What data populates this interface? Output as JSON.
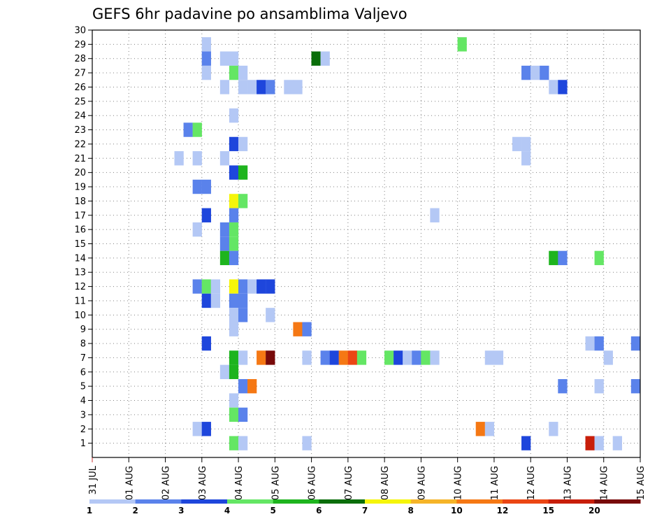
{
  "chart_data": {
    "type": "heatmap",
    "title": "GEFS 6hr padavine po ansamblima Valjevo",
    "y_ticks": [
      "1",
      "2",
      "3",
      "4",
      "5",
      "6",
      "7",
      "8",
      "9",
      "10",
      "11",
      "12",
      "13",
      "14",
      "15",
      "16",
      "17",
      "18",
      "19",
      "20",
      "21",
      "22",
      "23",
      "24",
      "25",
      "26",
      "27",
      "28",
      "29",
      "30"
    ],
    "x_ticks": [
      "31 JUL",
      "01 AUG",
      "02 AUG",
      "03 AUG",
      "04 AUG",
      "05 AUG",
      "06 AUG",
      "07 AUG",
      "08 AUG",
      "09 AUG",
      "10 AUG",
      "11 AUG",
      "12 AUG",
      "13 AUG",
      "14 AUG",
      "15 AUG"
    ],
    "x_range_steps": [
      0,
      60
    ],
    "y_range": [
      0,
      30
    ],
    "grid": true,
    "legend_placement": "bottom",
    "legend": {
      "labels": [
        "1",
        "2",
        "3",
        "4",
        "5",
        "6",
        "7",
        "8",
        "10",
        "12",
        "15",
        "20"
      ],
      "colors": [
        "#b4c8f5",
        "#5a82eb",
        "#1e46dc",
        "#64e664",
        "#1eb41e",
        "#0a6e0a",
        "#f5f50a",
        "#f5b428",
        "#f57814",
        "#eb4614",
        "#c81e0a",
        "#780a0a"
      ]
    },
    "cells": [
      [
        13,
        29,
        1
      ],
      [
        13,
        28,
        2
      ],
      [
        15,
        28,
        1
      ],
      [
        16,
        28,
        1
      ],
      [
        25,
        28,
        6
      ],
      [
        26,
        28,
        1
      ],
      [
        41,
        29,
        4
      ],
      [
        13,
        27,
        1
      ],
      [
        16,
        27,
        4
      ],
      [
        17,
        27,
        1
      ],
      [
        48,
        27,
        2
      ],
      [
        49,
        27,
        1
      ],
      [
        50,
        27,
        2
      ],
      [
        15,
        26,
        1
      ],
      [
        17,
        26,
        1
      ],
      [
        18,
        26,
        1
      ],
      [
        19,
        26,
        3
      ],
      [
        20,
        26,
        2
      ],
      [
        22,
        26,
        1
      ],
      [
        23,
        26,
        1
      ],
      [
        51,
        26,
        1
      ],
      [
        52,
        26,
        3
      ],
      [
        16,
        24,
        1
      ],
      [
        11,
        23,
        2
      ],
      [
        12,
        23,
        4
      ],
      [
        16,
        22,
        3
      ],
      [
        17,
        22,
        1
      ],
      [
        47,
        22,
        1
      ],
      [
        48,
        22,
        1
      ],
      [
        10,
        21,
        1
      ],
      [
        12,
        21,
        1
      ],
      [
        15,
        21,
        1
      ],
      [
        48,
        21,
        1
      ],
      [
        16,
        20,
        3
      ],
      [
        17,
        20,
        5
      ],
      [
        12,
        19,
        2
      ],
      [
        13,
        19,
        2
      ],
      [
        16,
        18,
        7
      ],
      [
        17,
        18,
        4
      ],
      [
        13,
        17,
        3
      ],
      [
        16,
        17,
        2
      ],
      [
        38,
        17,
        1
      ],
      [
        12,
        16,
        1
      ],
      [
        15,
        16,
        2
      ],
      [
        16,
        16,
        4
      ],
      [
        15,
        15,
        2
      ],
      [
        16,
        15,
        4
      ],
      [
        15,
        14,
        5
      ],
      [
        16,
        14,
        2
      ],
      [
        51,
        14,
        5
      ],
      [
        52,
        14,
        2
      ],
      [
        56,
        14,
        4
      ],
      [
        12,
        12,
        2
      ],
      [
        13,
        12,
        4
      ],
      [
        14,
        12,
        1
      ],
      [
        16,
        12,
        7
      ],
      [
        17,
        12,
        2
      ],
      [
        18,
        12,
        1
      ],
      [
        19,
        12,
        3
      ],
      [
        20,
        12,
        3
      ],
      [
        13,
        11,
        3
      ],
      [
        14,
        11,
        1
      ],
      [
        16,
        11,
        2
      ],
      [
        17,
        11,
        2
      ],
      [
        16,
        10,
        1
      ],
      [
        17,
        10,
        2
      ],
      [
        20,
        10,
        1
      ],
      [
        16,
        9,
        1
      ],
      [
        23,
        9,
        9
      ],
      [
        24,
        9,
        2
      ],
      [
        13,
        8,
        3
      ],
      [
        55,
        8,
        1
      ],
      [
        56,
        8,
        2
      ],
      [
        60,
        8,
        2
      ],
      [
        16,
        7,
        5
      ],
      [
        17,
        7,
        1
      ],
      [
        19,
        7,
        9
      ],
      [
        20,
        7,
        12
      ],
      [
        24,
        7,
        1
      ],
      [
        26,
        7,
        2
      ],
      [
        27,
        7,
        3
      ],
      [
        28,
        7,
        9
      ],
      [
        29,
        7,
        10
      ],
      [
        30,
        7,
        4
      ],
      [
        33,
        7,
        4
      ],
      [
        34,
        7,
        3
      ],
      [
        35,
        7,
        1
      ],
      [
        36,
        7,
        2
      ],
      [
        37,
        7,
        4
      ],
      [
        38,
        7,
        1
      ],
      [
        44,
        7,
        1
      ],
      [
        45,
        7,
        1
      ],
      [
        57,
        7,
        1
      ],
      [
        15,
        6,
        1
      ],
      [
        16,
        6,
        5
      ],
      [
        17,
        5,
        2
      ],
      [
        18,
        5,
        9
      ],
      [
        52,
        5,
        2
      ],
      [
        56,
        5,
        1
      ],
      [
        60,
        5,
        2
      ],
      [
        16,
        4,
        1
      ],
      [
        16,
        3,
        4
      ],
      [
        17,
        3,
        2
      ],
      [
        12,
        2,
        1
      ],
      [
        13,
        2,
        3
      ],
      [
        43,
        2,
        9
      ],
      [
        44,
        2,
        1
      ],
      [
        51,
        2,
        1
      ],
      [
        16,
        1,
        4
      ],
      [
        17,
        1,
        1
      ],
      [
        24,
        1,
        1
      ],
      [
        48,
        1,
        3
      ],
      [
        55,
        1,
        11
      ],
      [
        56,
        1,
        1
      ],
      [
        58,
        1,
        1
      ]
    ]
  }
}
